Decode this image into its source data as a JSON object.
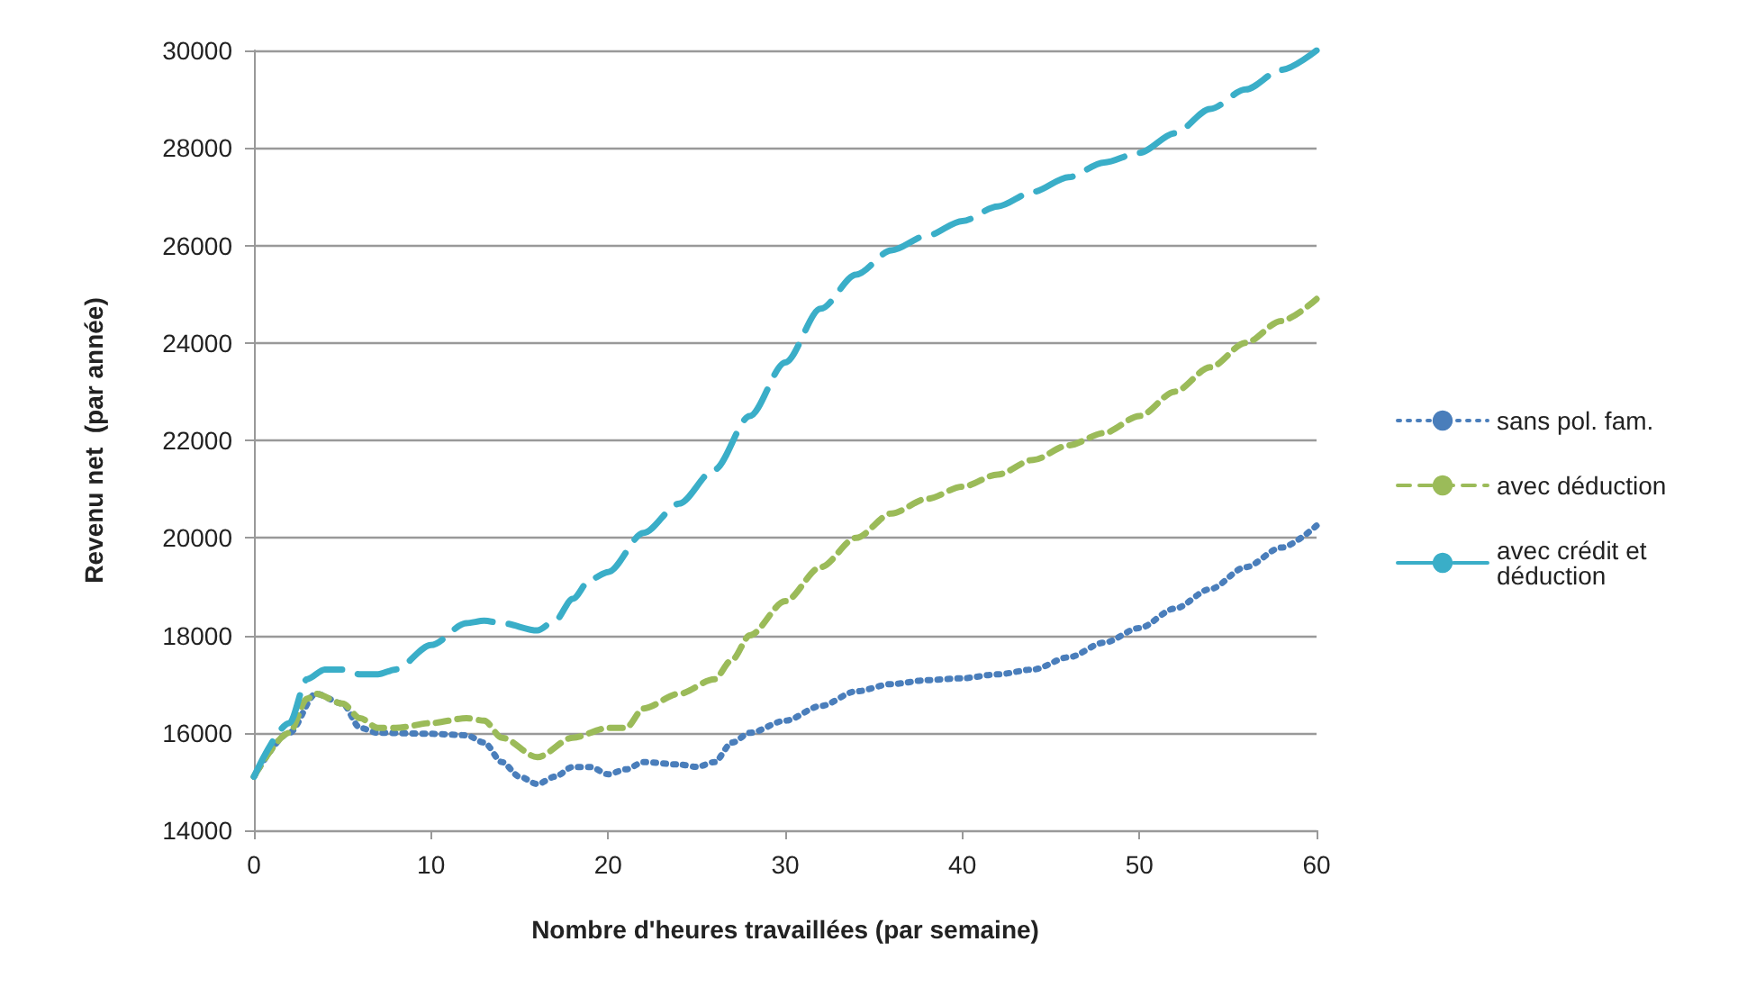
{
  "chart_data": {
    "type": "line",
    "xlabel": "Nombre d'heures travaillées (par semaine)",
    "ylabel": "Revenu net  (par année)",
    "xlim": [
      0,
      60
    ],
    "xticks": [
      0,
      10,
      20,
      30,
      40,
      50,
      60
    ],
    "ylim": [
      14000,
      30000
    ],
    "yticks": [
      14000,
      16000,
      18000,
      20000,
      22000,
      24000,
      26000,
      28000,
      30000
    ],
    "grid": "y",
    "legend": "right",
    "marker": "none",
    "series": [
      {
        "name": "sans pol. fam.",
        "color": "#4a7ebb",
        "line_style": "dotted",
        "x": [
          0,
          2,
          3.5,
          5,
          6,
          7,
          10,
          12,
          13,
          14,
          15,
          16,
          17,
          18,
          19,
          20,
          21,
          22,
          24,
          25,
          26,
          27,
          28,
          30,
          32,
          34,
          36,
          38,
          40,
          42,
          44,
          46,
          48,
          50,
          52,
          54,
          56,
          58,
          60
        ],
        "values": [
          15100,
          16000,
          16800,
          16600,
          16100,
          16000,
          15980,
          15950,
          15800,
          15400,
          15100,
          14950,
          15100,
          15300,
          15300,
          15150,
          15250,
          15400,
          15350,
          15300,
          15400,
          15800,
          16000,
          16250,
          16550,
          16850,
          17000,
          17080,
          17120,
          17200,
          17300,
          17550,
          17850,
          18150,
          18550,
          18950,
          19400,
          19800,
          20250
        ]
      },
      {
        "name": "avec déduction",
        "color": "#9bbb59",
        "line_style": "dashed",
        "x": [
          0,
          2,
          3,
          3.5,
          5,
          6,
          7,
          8,
          10,
          12,
          13,
          14,
          16,
          18,
          20,
          21,
          22,
          24,
          26,
          27,
          28,
          30,
          32,
          34,
          36,
          38,
          40,
          42,
          44,
          46,
          48,
          50,
          52,
          54,
          56,
          58,
          60
        ],
        "values": [
          15100,
          16000,
          16700,
          16800,
          16600,
          16300,
          16100,
          16100,
          16200,
          16300,
          16250,
          15900,
          15500,
          15900,
          16100,
          16100,
          16500,
          16800,
          17100,
          17500,
          18000,
          18700,
          19400,
          20000,
          20500,
          20800,
          21050,
          21300,
          21600,
          21900,
          22150,
          22500,
          23000,
          23500,
          24000,
          24450,
          24900
        ]
      },
      {
        "name": "avec crédit et déduction",
        "color": "#3aaec8",
        "line_style": "dashed",
        "x": [
          0,
          2,
          3,
          4,
          5,
          6,
          7,
          8,
          10,
          12,
          13,
          14,
          16,
          17,
          18,
          19,
          20,
          22,
          24,
          26,
          28,
          30,
          32,
          34,
          36,
          38,
          40,
          42,
          44,
          46,
          48,
          50,
          52,
          54,
          56,
          58,
          60
        ],
        "values": [
          15100,
          16200,
          17100,
          17300,
          17300,
          17200,
          17200,
          17300,
          17800,
          18250,
          18300,
          18250,
          18100,
          18300,
          18750,
          19150,
          19300,
          20100,
          20700,
          21400,
          22500,
          23600,
          24700,
          25400,
          25900,
          26200,
          26500,
          26800,
          27100,
          27400,
          27700,
          27900,
          28300,
          28800,
          29200,
          29600,
          30000
        ]
      }
    ]
  }
}
